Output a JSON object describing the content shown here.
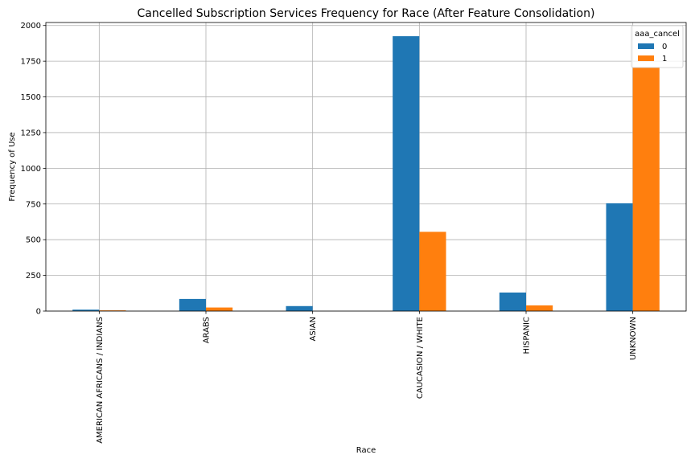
{
  "chart_data": {
    "type": "bar",
    "title": "Cancelled Subscription Services Frequency for Race (After Feature Consolidation)",
    "xlabel": "Race",
    "ylabel": "Frequency of Use",
    "categories": [
      "AMERICAN AFRICANS / INDIANS",
      "ARABS",
      "ASIAN",
      "CAUCASION / WHITE",
      "HISPANIC",
      "UNKNOWN"
    ],
    "series": [
      {
        "name": "0",
        "values": [
          10,
          85,
          35,
          1925,
          130,
          755
        ],
        "color": "#1f77b4"
      },
      {
        "name": "1",
        "values": [
          5,
          25,
          0,
          555,
          40,
          1705
        ],
        "color": "#ff7f0e"
      }
    ],
    "ylim": [
      0,
      2021
    ],
    "yticks": [
      0,
      250,
      500,
      750,
      1000,
      1250,
      1500,
      1750,
      2000
    ],
    "grid": true,
    "legend": {
      "title": "aaa_cancel",
      "placement": "top-right"
    }
  }
}
